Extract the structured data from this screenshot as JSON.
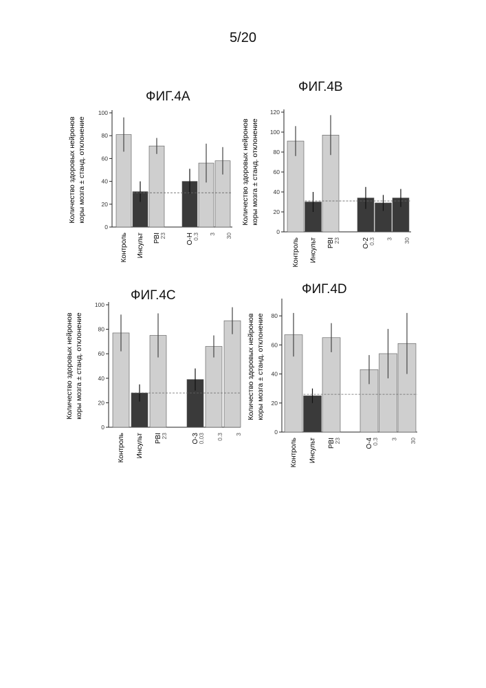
{
  "page_number": "5/20",
  "colors": {
    "light_bar": "#cfcfcf",
    "dark_bar": "#3a3a3a",
    "axis": "#222222",
    "error": "#444444"
  },
  "chart_data": [
    {
      "type": "bar",
      "title": "ФИГ.4А",
      "ylabel_line1": "Количество здоровых нейронов",
      "ylabel_line2": "коры мозга ± станд. отклонение",
      "ylim": [
        0,
        100
      ],
      "yticks": [
        "0",
        "20",
        "40",
        "60",
        "80",
        "100"
      ],
      "ytick_values": [
        0,
        20,
        40,
        60,
        80,
        100
      ],
      "reference_line": 30,
      "series": [
        {
          "label": "Контроль",
          "value": 81,
          "error": 15,
          "shade": "light",
          "slot": 0
        },
        {
          "label": "Инсульт",
          "value": 31,
          "error": 9,
          "shade": "dark",
          "slot": 1
        },
        {
          "label": "PBI",
          "dose": "23",
          "value": 71,
          "error": 7,
          "shade": "light",
          "slot": 2
        },
        {
          "label": "O-H",
          "dose": "0.3",
          "value": 40,
          "error": 11,
          "shade": "dark",
          "slot": 4
        },
        {
          "label": "",
          "dose": "3",
          "value": 56,
          "error": 17,
          "shade": "light",
          "slot": 5
        },
        {
          "label": "",
          "dose": "30",
          "value": 58,
          "error": 12,
          "shade": "light",
          "slot": 6
        }
      ]
    },
    {
      "type": "bar",
      "title": "ФИГ.4В",
      "ylabel_line1": "Количество здоровых нейронов",
      "ylabel_line2": "коры мозга ± станд. отклонение",
      "ylim": [
        0,
        120
      ],
      "yticks": [
        "0",
        "20",
        "40",
        "60",
        "80",
        "100",
        "120"
      ],
      "ytick_values": [
        0,
        20,
        40,
        60,
        80,
        100,
        120
      ],
      "reference_line": 31,
      "series": [
        {
          "label": "Контроль",
          "value": 91,
          "error": 15,
          "shade": "light",
          "slot": 0
        },
        {
          "label": "Инсульт",
          "value": 30,
          "error": 10,
          "shade": "dark",
          "slot": 1
        },
        {
          "label": "PBI",
          "dose": "23",
          "value": 97,
          "error": 20,
          "shade": "light",
          "slot": 2
        },
        {
          "label": "O-2",
          "dose": "0.3",
          "value": 34,
          "error": 11,
          "shade": "dark",
          "slot": 4
        },
        {
          "label": "",
          "dose": "3",
          "value": 29,
          "error": 8,
          "shade": "dark",
          "slot": 5
        },
        {
          "label": "",
          "dose": "30",
          "value": 34,
          "error": 9,
          "shade": "dark",
          "slot": 6
        }
      ]
    },
    {
      "type": "bar",
      "title": "ФИГ.4С",
      "ylabel_line1": "Количество здоровых нейронов",
      "ylabel_line2": "коры мозга ± станд. отклонение",
      "ylim": [
        0,
        100
      ],
      "yticks": [
        "0",
        "20",
        "40",
        "60",
        "80",
        "100"
      ],
      "ytick_values": [
        0,
        20,
        40,
        60,
        80,
        100
      ],
      "reference_line": 28,
      "series": [
        {
          "label": "Контроль",
          "value": 77,
          "error": 15,
          "shade": "light",
          "slot": 0
        },
        {
          "label": "Инсульт",
          "value": 28,
          "error": 7,
          "shade": "dark",
          "slot": 1
        },
        {
          "label": "PBI",
          "dose": "23",
          "value": 75,
          "error": 18,
          "shade": "light",
          "slot": 2
        },
        {
          "label": "O-3",
          "dose": "0.03",
          "value": 39,
          "error": 9,
          "shade": "dark",
          "slot": 4
        },
        {
          "label": "",
          "dose": "0.3",
          "value": 66,
          "error": 9,
          "shade": "light",
          "slot": 5
        },
        {
          "label": "",
          "dose": "3",
          "value": 87,
          "error": 11,
          "shade": "light",
          "slot": 6
        }
      ]
    },
    {
      "type": "bar",
      "title": "ФИГ.4D",
      "ylabel_line1": "Количество здоровых нейронов",
      "ylabel_line2": "коры мозга ± станд. отклонение",
      "ylim": [
        0,
        90
      ],
      "yticks": [
        "0",
        "20",
        "40",
        "60",
        "80"
      ],
      "ytick_values": [
        0,
        20,
        40,
        60,
        80
      ],
      "reference_line": 26,
      "series": [
        {
          "label": "Контроль",
          "value": 67,
          "error": 15,
          "shade": "light",
          "slot": 0
        },
        {
          "label": "Инсульт",
          "value": 25,
          "error": 5,
          "shade": "dark",
          "slot": 1
        },
        {
          "label": "PBI",
          "dose": "23",
          "value": 65,
          "error": 10,
          "shade": "light",
          "slot": 2
        },
        {
          "label": "O-4",
          "dose": "0.3",
          "value": 43,
          "error": 10,
          "shade": "light",
          "slot": 4
        },
        {
          "label": "",
          "dose": "3",
          "value": 54,
          "error": 17,
          "shade": "light",
          "slot": 5
        },
        {
          "label": "",
          "dose": "30",
          "value": 61,
          "error": 21,
          "shade": "light",
          "slot": 6
        }
      ]
    }
  ]
}
